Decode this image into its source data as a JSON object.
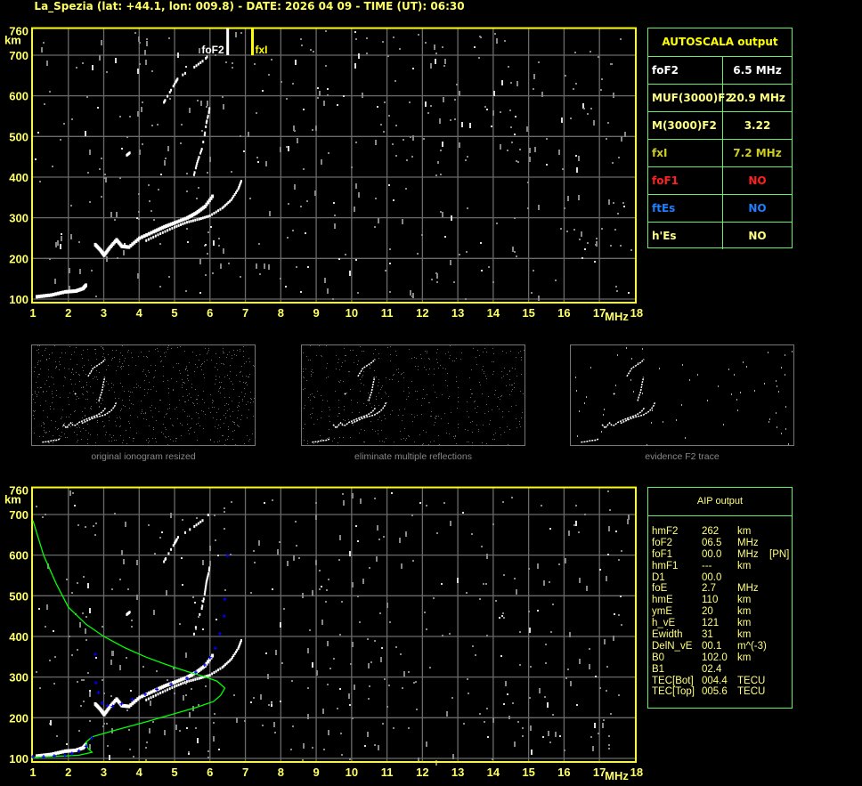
{
  "title": "La_Spezia (lat: +44.1, lon: 009.8) - DATE: 2026 04 09 - TIME (UT): 06:30",
  "autoscala": {
    "header": "AUTOSCALA output",
    "rows": [
      {
        "key": "foF2",
        "value": "6.5 MHz",
        "color": "#ffffff"
      },
      {
        "key": "MUF(3000)F2",
        "value": "20.9 MHz",
        "color": "#ffff80"
      },
      {
        "key": "M(3000)F2",
        "value": "3.22",
        "color": "#ffff80"
      },
      {
        "key": "fxI",
        "value": "7.2 MHz",
        "color": "#cccc22"
      },
      {
        "key": "foF1",
        "value": "NO",
        "color": "#ff2020"
      },
      {
        "key": "ftEs",
        "value": "NO",
        "color": "#1e7fff"
      },
      {
        "key": "h'Es",
        "value": "NO",
        "color": "#ffff80"
      }
    ]
  },
  "aip": {
    "header": "AIP output",
    "rows": [
      [
        "hmF2",
        "262",
        "km",
        ""
      ],
      [
        "foF2",
        "06.5",
        "MHz",
        ""
      ],
      [
        "foF1",
        "00.0",
        "MHz",
        "[PN]"
      ],
      [
        "hmF1",
        "---",
        "km",
        ""
      ],
      [
        "D1",
        "00.0",
        "",
        ""
      ],
      [
        "foE",
        "2.7",
        "MHz",
        ""
      ],
      [
        "hmE",
        "110",
        "km",
        ""
      ],
      [
        "ymE",
        "20",
        "km",
        ""
      ],
      [
        "h_vE",
        "121",
        "km",
        ""
      ],
      [
        "Ewidth",
        "31",
        "km",
        ""
      ],
      [
        "DelN_vE",
        "00.1",
        "m^(-3)",
        ""
      ],
      [
        "B0",
        "102.0",
        "km",
        ""
      ],
      [
        "B1",
        "02.4",
        "",
        ""
      ],
      [
        "TEC[Bot]",
        "004.4",
        "TECU",
        ""
      ],
      [
        "TEC[Top]",
        "005.6",
        "TECU",
        ""
      ]
    ]
  },
  "thumbnails": [
    {
      "caption": "original ionogram resized"
    },
    {
      "caption": "eliminate multiple reflections"
    },
    {
      "caption": "evidence F2 trace"
    }
  ],
  "chart_data": [
    {
      "type": "scatter",
      "panel": "autoscala-ionogram",
      "xlabel": "MHz",
      "ylabel": "km",
      "xlim": [
        1,
        18
      ],
      "ylim": [
        100,
        760
      ],
      "xticks": [
        "1",
        "2",
        "3",
        "4",
        "5",
        "6",
        "7",
        "8",
        "9",
        "10",
        "11",
        "12",
        "13",
        "14",
        "15",
        "16",
        "17",
        "18"
      ],
      "yticks": [
        "760",
        "700",
        "600",
        "500",
        "400",
        "300",
        "200",
        "100"
      ],
      "grid": true,
      "markers": [
        {
          "label": "foF2",
          "x": 6.5,
          "color": "#ffffff"
        },
        {
          "label": "fxI",
          "x": 7.2,
          "color": "#ffff00"
        }
      ],
      "traces": {
        "E": [
          [
            1.1,
            108
          ],
          [
            1.5,
            112
          ],
          [
            1.9,
            120
          ],
          [
            2.2,
            122
          ],
          [
            2.4,
            128
          ],
          [
            2.5,
            138
          ]
        ],
        "F2_ordinary": [
          [
            2.75,
            236
          ],
          [
            2.9,
            222
          ],
          [
            3.0,
            210
          ],
          [
            3.15,
            228
          ],
          [
            3.35,
            248
          ],
          [
            3.5,
            232
          ],
          [
            3.7,
            230
          ],
          [
            4.0,
            252
          ],
          [
            4.4,
            268
          ],
          [
            4.7,
            280
          ],
          [
            5.0,
            290
          ],
          [
            5.35,
            302
          ],
          [
            5.6,
            314
          ],
          [
            5.85,
            330
          ],
          [
            6.1,
            360
          ]
        ],
        "F2_extraordinary": [
          [
            4.2,
            245
          ],
          [
            4.6,
            262
          ],
          [
            5.0,
            278
          ],
          [
            5.35,
            290
          ],
          [
            5.7,
            298
          ],
          [
            6.0,
            306
          ],
          [
            6.35,
            325
          ],
          [
            6.6,
            345
          ],
          [
            6.8,
            372
          ],
          [
            6.9,
            395
          ]
        ],
        "F2_multiple": [
          [
            5.55,
            407
          ],
          [
            5.65,
            440
          ],
          [
            5.77,
            470
          ],
          [
            5.85,
            505
          ],
          [
            5.9,
            535
          ],
          [
            5.97,
            560
          ],
          [
            6.0,
            580
          ]
        ],
        "F2_multiple_2": [
          [
            4.7,
            585
          ],
          [
            4.8,
            600
          ],
          [
            5.0,
            630
          ],
          [
            5.1,
            645
          ],
          [
            5.5,
            668
          ],
          [
            5.85,
            690
          ],
          [
            6.05,
            710
          ]
        ],
        "spot": [
          [
            3.65,
            455
          ],
          [
            3.75,
            462
          ]
        ]
      }
    },
    {
      "type": "line",
      "panel": "aip-ionogram",
      "xlabel": "MHz",
      "ylabel": "km",
      "xlim": [
        1,
        18
      ],
      "ylim": [
        100,
        760
      ],
      "grid": true,
      "series": [
        {
          "role": "profile",
          "color": "#00ff00",
          "points": [
            [
              1,
              685
            ],
            [
              1.3,
              600
            ],
            [
              1.65,
              531
            ],
            [
              2.0,
              472
            ],
            [
              2.5,
              430
            ],
            [
              3.0,
              400
            ],
            [
              3.6,
              372
            ],
            [
              4.17,
              350
            ],
            [
              4.7,
              333
            ],
            [
              5.17,
              319
            ],
            [
              5.5,
              310
            ],
            [
              5.85,
              301
            ],
            [
              6.2,
              290
            ],
            [
              6.42,
              273
            ],
            [
              6.3,
              255
            ],
            [
              6.1,
              240
            ],
            [
              5.6,
              225
            ],
            [
              5.0,
              210
            ],
            [
              4.2,
              190
            ],
            [
              3.35,
              170
            ],
            [
              2.67,
              153
            ],
            [
              2.5,
              140
            ],
            [
              2.55,
              125
            ],
            [
              2.67,
              115
            ],
            [
              2.3,
              108
            ],
            [
              1.9,
              106
            ],
            [
              1.4,
              104
            ],
            [
              1,
              103
            ]
          ]
        },
        {
          "role": "fitted-trace",
          "color": "#0000ff",
          "points": [
            [
              1.0,
              104
            ],
            [
              1.3,
              104
            ],
            [
              1.6,
              106
            ],
            [
              1.9,
              108
            ],
            [
              2.1,
              112
            ],
            [
              2.3,
              118
            ],
            [
              2.5,
              130
            ],
            [
              2.67,
              150
            ],
            [
              2.76,
              356
            ],
            [
              2.78,
              286
            ],
            [
              2.85,
              262
            ],
            [
              2.95,
              236
            ],
            [
              3.1,
              230
            ],
            [
              3.25,
              228
            ],
            [
              3.5,
              234
            ],
            [
              3.8,
              245
            ],
            [
              4.17,
              258
            ],
            [
              4.5,
              270
            ],
            [
              4.9,
              283
            ],
            [
              5.35,
              297
            ],
            [
              5.6,
              312
            ],
            [
              5.85,
              330
            ],
            [
              6.0,
              348
            ],
            [
              6.15,
              371
            ],
            [
              6.28,
              407
            ],
            [
              6.4,
              450
            ],
            [
              6.42,
              492
            ],
            [
              6.5,
              599
            ]
          ]
        }
      ]
    }
  ]
}
